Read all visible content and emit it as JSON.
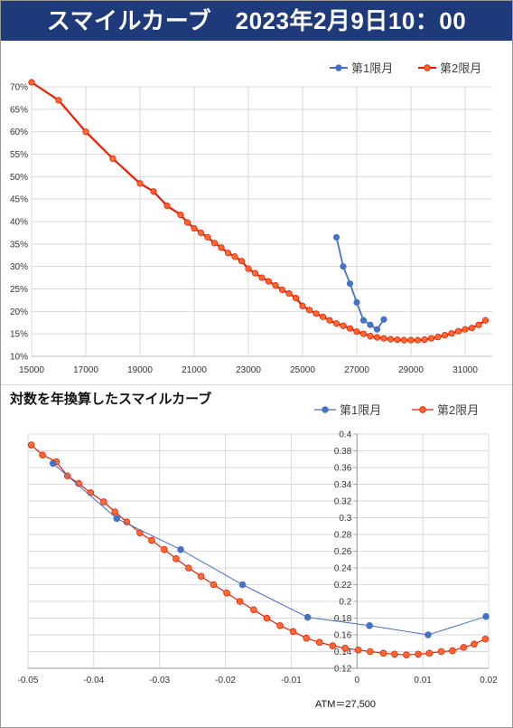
{
  "banner": {
    "title": "スマイルカーブ　2023年2月9日10：00"
  },
  "colors": {
    "series1": "#4472c4",
    "series2": "#ee1c00",
    "series2_marker_fill": "#ff6a33",
    "grid": "#d9d9d9",
    "banner_bg": "#1f3a7a"
  },
  "chart_data": [
    {
      "type": "line",
      "title": "",
      "xlabel": "",
      "ylabel": "",
      "xlim": [
        15000,
        32000
      ],
      "ylim": [
        10,
        70
      ],
      "x_ticks": [
        15000,
        17000,
        19000,
        21000,
        23000,
        25000,
        27000,
        29000,
        31000
      ],
      "y_ticks": [
        10,
        15,
        20,
        25,
        30,
        35,
        40,
        45,
        50,
        55,
        60,
        65,
        70
      ],
      "y_tick_labels": [
        "10%",
        "15%",
        "20%",
        "25%",
        "30%",
        "35%",
        "40%",
        "45%",
        "50%",
        "55%",
        "60%",
        "65%",
        "70%"
      ],
      "grid": true,
      "legend_position": "top-right",
      "series": [
        {
          "name": "第1限月",
          "points": [
            [
              26250,
              36.5
            ],
            [
              26500,
              30
            ],
            [
              26750,
              26.2
            ],
            [
              27000,
              22
            ],
            [
              27250,
              18
            ],
            [
              27500,
              17
            ],
            [
              27750,
              16
            ],
            [
              28000,
              18.2
            ]
          ]
        },
        {
          "name": "第2限月",
          "points": [
            [
              15000,
              71
            ],
            [
              16000,
              67
            ],
            [
              17000,
              60
            ],
            [
              18000,
              54
            ],
            [
              19000,
              48.5
            ],
            [
              19500,
              46.7
            ],
            [
              20000,
              43.5
            ],
            [
              20500,
              41.5
            ],
            [
              20750,
              39.8
            ],
            [
              21000,
              38.5
            ],
            [
              21250,
              37.5
            ],
            [
              21500,
              36.5
            ],
            [
              21750,
              35.2
            ],
            [
              22000,
              34.2
            ],
            [
              22250,
              33
            ],
            [
              22500,
              32.2
            ],
            [
              22750,
              31.2
            ],
            [
              23000,
              29.5
            ],
            [
              23250,
              28.5
            ],
            [
              23500,
              27.5
            ],
            [
              23750,
              26.7
            ],
            [
              24000,
              25.8
            ],
            [
              24250,
              24.8
            ],
            [
              24500,
              24
            ],
            [
              24750,
              23
            ],
            [
              25000,
              21.2
            ],
            [
              25250,
              20.3
            ],
            [
              25500,
              19.5
            ],
            [
              25750,
              18.8
            ],
            [
              26000,
              18
            ],
            [
              26250,
              17.3
            ],
            [
              26500,
              16.8
            ],
            [
              26750,
              16.2
            ],
            [
              27000,
              15.5
            ],
            [
              27250,
              15
            ],
            [
              27500,
              14.5
            ],
            [
              27750,
              14.2
            ],
            [
              28000,
              14
            ],
            [
              28250,
              13.8
            ],
            [
              28500,
              13.7
            ],
            [
              28750,
              13.6
            ],
            [
              29000,
              13.6
            ],
            [
              29250,
              13.6
            ],
            [
              29500,
              13.7
            ],
            [
              29750,
              14
            ],
            [
              30000,
              14.3
            ],
            [
              30250,
              14.7
            ],
            [
              30500,
              15.1
            ],
            [
              30750,
              15.6
            ],
            [
              31000,
              16
            ],
            [
              31250,
              16.3
            ],
            [
              31500,
              17
            ],
            [
              31750,
              18
            ]
          ]
        }
      ]
    },
    {
      "type": "line",
      "title": "対数を年換算したスマイルカーブ",
      "xlabel": "",
      "ylabel": "",
      "xlim": [
        -0.05,
        0.02
      ],
      "ylim": [
        0.12,
        0.4
      ],
      "x_ticks": [
        -0.05,
        -0.04,
        -0.03,
        -0.02,
        -0.01,
        0,
        0.01,
        0.02
      ],
      "x_tick_labels": [
        "-0.05",
        "-0.04",
        "-0.03",
        "-0.02",
        "-0.01",
        "0",
        "0.01",
        "0.02"
      ],
      "y_ticks": [
        0.12,
        0.14,
        0.16,
        0.18,
        0.2,
        0.22,
        0.24,
        0.26,
        0.28,
        0.3,
        0.32,
        0.34,
        0.36,
        0.38,
        0.4
      ],
      "y_tick_labels": [
        "0.12",
        "0.14",
        "0.16",
        "0.18",
        "0.2",
        "0.22",
        "0.24",
        "0.26",
        "0.28",
        "0.3",
        "0.32",
        "0.34",
        "0.36",
        "0.38",
        "0.4"
      ],
      "grid": true,
      "legend_position": "top-right",
      "annotation": "ATM＝27,500",
      "series": [
        {
          "name": "第1限月",
          "points": [
            [
              -0.0462,
              0.365
            ],
            [
              -0.0365,
              0.299
            ],
            [
              -0.0268,
              0.262
            ],
            [
              -0.0174,
              0.22
            ],
            [
              -0.0075,
              0.181
            ],
            [
              0.0019,
              0.171
            ],
            [
              0.0108,
              0.16
            ],
            [
              0.0196,
              0.182
            ]
          ]
        },
        {
          "name": "第2限月",
          "points": [
            [
              -0.0495,
              0.387
            ],
            [
              -0.0478,
              0.375
            ],
            [
              -0.0457,
              0.367
            ],
            [
              -0.044,
              0.35
            ],
            [
              -0.0423,
              0.341
            ],
            [
              -0.0405,
              0.33
            ],
            [
              -0.0385,
              0.319
            ],
            [
              -0.0368,
              0.307
            ],
            [
              -0.035,
              0.295
            ],
            [
              -0.033,
              0.282
            ],
            [
              -0.0312,
              0.273
            ],
            [
              -0.0293,
              0.262
            ],
            [
              -0.0275,
              0.251
            ],
            [
              -0.0256,
              0.24
            ],
            [
              -0.0237,
              0.23
            ],
            [
              -0.0218,
              0.22
            ],
            [
              -0.0198,
              0.21
            ],
            [
              -0.0178,
              0.2
            ],
            [
              -0.0157,
              0.19
            ],
            [
              -0.0137,
              0.18
            ],
            [
              -0.0117,
              0.171
            ],
            [
              -0.0097,
              0.164
            ],
            [
              -0.0077,
              0.156
            ],
            [
              -0.0057,
              0.151
            ],
            [
              -0.0037,
              0.147
            ],
            [
              -0.0018,
              0.144
            ],
            [
              0.0002,
              0.142
            ],
            [
              0.002,
              0.14
            ],
            [
              0.004,
              0.138
            ],
            [
              0.0057,
              0.137
            ],
            [
              0.0075,
              0.136
            ],
            [
              0.0093,
              0.137
            ],
            [
              0.011,
              0.138
            ],
            [
              0.0128,
              0.14
            ],
            [
              0.0145,
              0.141
            ],
            [
              0.0162,
              0.145
            ],
            [
              0.0178,
              0.149
            ],
            [
              0.0195,
              0.155
            ]
          ]
        }
      ]
    }
  ]
}
